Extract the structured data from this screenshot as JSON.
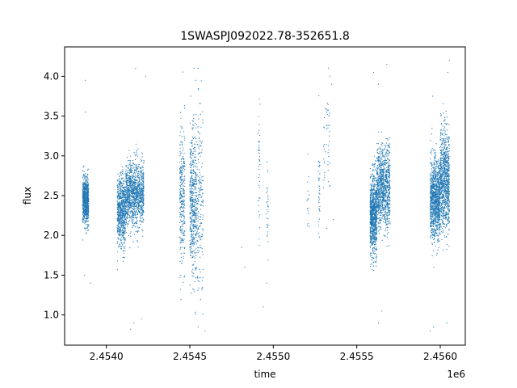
{
  "chart_data": {
    "type": "scatter",
    "title": "1SWASPJ092022.78-352651.8",
    "xlabel": "time",
    "ylabel": "flux",
    "x_offset_label": "1e6",
    "xlim": [
      2.45375,
      2.45615
    ],
    "ylim": [
      0.62,
      4.37
    ],
    "grid": false,
    "marker_color": "#1f77b4",
    "x_ticks": [
      2.454,
      2.4545,
      2.455,
      2.4555,
      2.456
    ],
    "x_tick_labels": [
      "2.4540",
      "2.4545",
      "2.4550",
      "2.4555",
      "2.4560"
    ],
    "y_ticks": [
      1.0,
      1.5,
      2.0,
      2.5,
      3.0,
      3.5,
      4.0
    ],
    "y_tick_labels": [
      "1.0",
      "1.5",
      "2.0",
      "2.5",
      "3.0",
      "3.5",
      "4.0"
    ],
    "clusters": [
      {
        "x_start": 2.453858,
        "x_end": 2.453894,
        "y_mean": 2.43,
        "y_sd": 0.14,
        "n": 800
      },
      {
        "x_start": 2.454065,
        "x_end": 2.454115,
        "y_mean": 2.3,
        "y_sd": 0.22,
        "n": 700
      },
      {
        "x_start": 2.454115,
        "x_end": 2.454225,
        "y_mean": 2.52,
        "y_sd": 0.2,
        "n": 1200
      },
      {
        "x_start": 2.45444,
        "x_end": 2.45447,
        "y_mean": 2.45,
        "y_sd": 0.45,
        "n": 300
      },
      {
        "x_start": 2.4545,
        "x_end": 2.45454,
        "y_mean": 2.4,
        "y_sd": 0.45,
        "n": 500
      },
      {
        "x_start": 2.45454,
        "x_end": 2.45458,
        "y_mean": 2.4,
        "y_sd": 0.6,
        "n": 200
      },
      {
        "x_start": 2.45491,
        "x_end": 2.45492,
        "y_mean": 2.9,
        "y_sd": 0.4,
        "n": 40
      },
      {
        "x_start": 2.45496,
        "x_end": 2.45497,
        "y_mean": 2.3,
        "y_sd": 0.3,
        "n": 30
      },
      {
        "x_start": 2.4552,
        "x_end": 2.455215,
        "y_mean": 2.4,
        "y_sd": 0.25,
        "n": 15
      },
      {
        "x_start": 2.45527,
        "x_end": 2.45528,
        "y_mean": 2.6,
        "y_sd": 0.35,
        "n": 35
      },
      {
        "x_start": 2.4553,
        "x_end": 2.45534,
        "y_mean": 3.2,
        "y_sd": 0.4,
        "n": 50
      },
      {
        "x_start": 2.45558,
        "x_end": 2.45562,
        "y_mean": 2.25,
        "y_sd": 0.25,
        "n": 900
      },
      {
        "x_start": 2.45562,
        "x_end": 2.4557,
        "y_mean": 2.6,
        "y_sd": 0.25,
        "n": 1000
      },
      {
        "x_start": 2.45594,
        "x_end": 2.456,
        "y_mean": 2.45,
        "y_sd": 0.25,
        "n": 1100
      },
      {
        "x_start": 2.456,
        "x_end": 2.456055,
        "y_mean": 2.7,
        "y_sd": 0.3,
        "n": 900
      }
    ],
    "outliers": [
      [
        2.453873,
        3.95
      ],
      [
        2.453875,
        3.55
      ],
      [
        2.45387,
        1.5
      ],
      [
        2.453905,
        1.4
      ],
      [
        2.454145,
        0.82
      ],
      [
        2.454165,
        0.9
      ],
      [
        2.45421,
        0.95
      ],
      [
        2.454175,
        4.1
      ],
      [
        2.454235,
        4.0
      ],
      [
        2.45447,
        3.6
      ],
      [
        2.454535,
        3.95
      ],
      [
        2.45455,
        4.1
      ],
      [
        2.45459,
        0.8
      ],
      [
        2.45455,
        0.85
      ],
      [
        2.454505,
        3.75
      ],
      [
        2.45481,
        1.85
      ],
      [
        2.45483,
        1.6
      ],
      [
        2.45492,
        3.65
      ],
      [
        2.45494,
        1.1
      ],
      [
        2.45496,
        1.4
      ],
      [
        2.45535,
        3.9
      ],
      [
        2.45536,
        2.2
      ],
      [
        2.4556,
        4.05
      ],
      [
        2.45563,
        3.9
      ],
      [
        2.45568,
        4.15
      ],
      [
        2.45563,
        0.9
      ],
      [
        2.45565,
        1.05
      ],
      [
        2.45594,
        0.8
      ],
      [
        2.45596,
        0.85
      ],
      [
        2.45604,
        0.9
      ],
      [
        2.456055,
        4.2
      ],
      [
        2.455955,
        3.75
      ],
      [
        2.456045,
        4.05
      ]
    ]
  }
}
